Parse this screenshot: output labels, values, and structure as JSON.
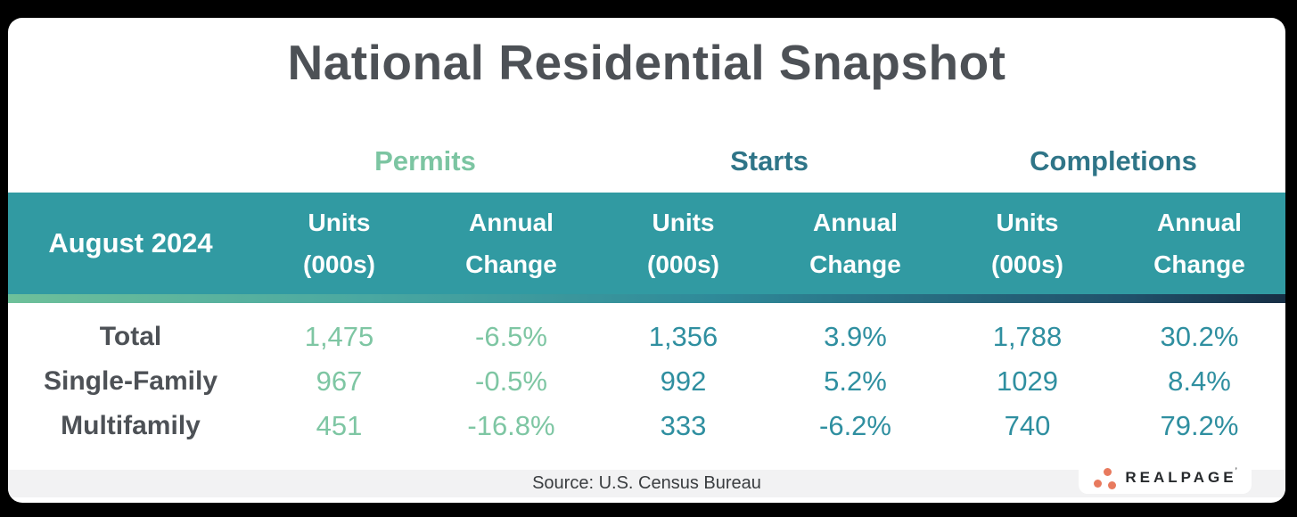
{
  "chart_data": {
    "type": "table",
    "title": "National Residential Snapshot",
    "period": "August 2024",
    "column_groups": [
      "Permits",
      "Starts",
      "Completions"
    ],
    "sub_columns": [
      "Units (000s)",
      "Annual Change"
    ],
    "rows": [
      {
        "label": "Total",
        "permits": {
          "units": "1,475",
          "annual_change": "-6.5%"
        },
        "starts": {
          "units": "1,356",
          "annual_change": "3.9%"
        },
        "completions": {
          "units": "1,788",
          "annual_change": "30.2%"
        }
      },
      {
        "label": "Single-Family",
        "permits": {
          "units": "967",
          "annual_change": "-0.5%"
        },
        "starts": {
          "units": "992",
          "annual_change": "5.2%"
        },
        "completions": {
          "units": "1029",
          "annual_change": "8.4%"
        }
      },
      {
        "label": "Multifamily",
        "permits": {
          "units": "451",
          "annual_change": "-16.8%"
        },
        "starts": {
          "units": "333",
          "annual_change": "-6.2%"
        },
        "completions": {
          "units": "740",
          "annual_change": "79.2%"
        }
      }
    ],
    "source": "Source: U.S. Census Bureau"
  },
  "header": {
    "units_line1": "Units",
    "units_line2": "(000s)",
    "annual_line1": "Annual",
    "annual_line2": "Change"
  },
  "footer": {
    "logo_text": "REALPAGE",
    "logo_trademark": "’"
  },
  "colors": {
    "header_band_teal": "#319aa2",
    "permits_green": "#7cc5a2",
    "starts_completions_teal": "#2f7588",
    "value_teal": "#2f8fa0",
    "title_gray": "#4d5156",
    "gradient_left_green": "#6ec09a",
    "gradient_right_navy": "#172e44",
    "logo_orange": "#e87a5e",
    "source_band_gray": "#f2f2f3",
    "background_black": "#000000"
  }
}
